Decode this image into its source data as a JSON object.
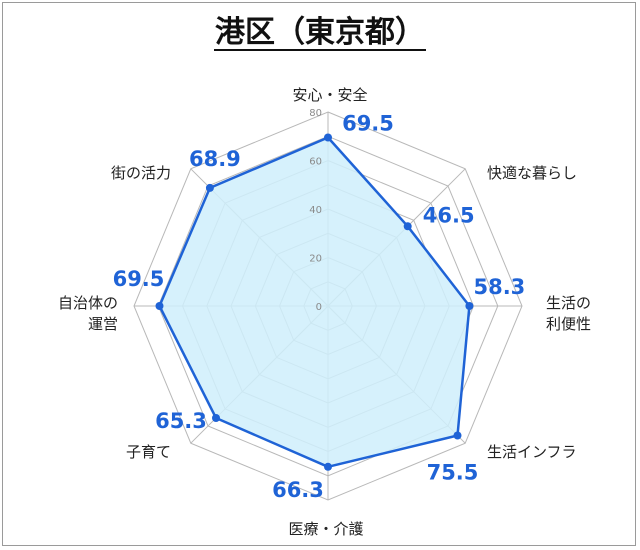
{
  "chart_data": {
    "type": "radar",
    "title": "港区（東京都）",
    "categories": [
      "安心・安全",
      "快適な暮らし",
      "生活の\n利便性",
      "生活インフラ",
      "医療・介護",
      "子育て",
      "自治体の\n運営",
      "街の活力"
    ],
    "series": [
      {
        "values": [
          69.5,
          46.5,
          58.3,
          75.5,
          66.3,
          65.3,
          69.5,
          68.9
        ],
        "value_labels": [
          "69.5",
          "46.5",
          "58.3",
          "75.5",
          "66.3",
          "65.3",
          "69.5",
          "68.9"
        ]
      }
    ],
    "rlim": [
      0,
      80
    ],
    "ticks": [
      0,
      20,
      40,
      60,
      80
    ],
    "tick_labels": [
      "0",
      "20",
      "40",
      "60",
      "80"
    ],
    "grid": true,
    "colors": {
      "line": "#1f63d6",
      "fill": "#cfeefc",
      "grid": "#b8b8b8",
      "value_text": "#1f63d6"
    }
  }
}
